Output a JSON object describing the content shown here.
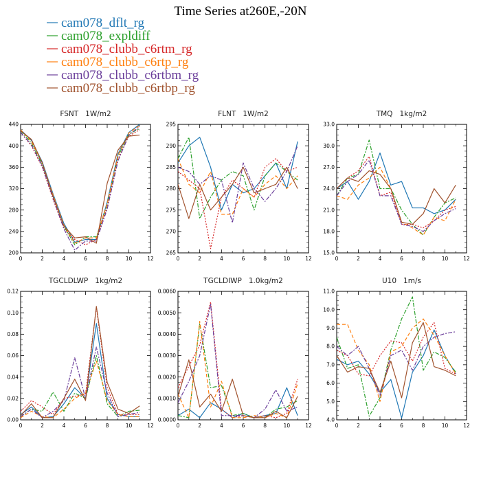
{
  "figure_title": "Time Series at260E,-20N",
  "legend": [
    {
      "name": "cam078_dflt_rg",
      "color": "#1f77b4"
    },
    {
      "name": "cam078_expldiff",
      "color": "#2ca02c"
    },
    {
      "name": "cam078_clubb_c6rtm_rg",
      "color": "#d62728"
    },
    {
      "name": "cam078_clubb_c6rtp_rg",
      "color": "#ff7f0e"
    },
    {
      "name": "cam078_clubb_c6rtbm_rg",
      "color": "#6a3d9a"
    },
    {
      "name": "cam078_clubb_c6rtbp_rg",
      "color": "#a0522d"
    }
  ],
  "chart_data": [
    {
      "type": "line",
      "title": "FSNT   1W/m2",
      "x": [
        0,
        1,
        2,
        3,
        4,
        5,
        6,
        7,
        8,
        9,
        10,
        11
      ],
      "xlim": [
        0,
        12
      ],
      "xticks": [
        0,
        2,
        4,
        6,
        8,
        10,
        12
      ],
      "xtick_labels": [
        "0",
        "2",
        "4",
        "6",
        "8",
        "10",
        "12"
      ],
      "ylim": [
        200,
        440
      ],
      "yticks": [
        200,
        240,
        280,
        320,
        360,
        400,
        440
      ],
      "ytick_labels": [
        "200",
        "240",
        "280",
        "320",
        "360",
        "400",
        "440"
      ],
      "series": [
        {
          "name": "cam078_dflt_rg",
          "values": [
            430,
            410,
            370,
            310,
            255,
            220,
            225,
            225,
            295,
            385,
            425,
            440
          ]
        },
        {
          "name": "cam078_expldiff",
          "values": [
            428,
            405,
            365,
            305,
            250,
            215,
            230,
            230,
            290,
            380,
            422,
            432
          ]
        },
        {
          "name": "cam078_clubb_c6rtm_rg",
          "values": [
            425,
            400,
            360,
            300,
            245,
            225,
            215,
            225,
            285,
            375,
            418,
            430
          ]
        },
        {
          "name": "cam078_clubb_c6rtp_rg",
          "values": [
            430,
            408,
            368,
            308,
            252,
            218,
            228,
            228,
            292,
            382,
            424,
            438
          ]
        },
        {
          "name": "cam078_clubb_c6rtbm_rg",
          "values": [
            425,
            402,
            362,
            302,
            245,
            205,
            222,
            222,
            282,
            372,
            420,
            436
          ]
        },
        {
          "name": "cam078_clubb_c6rtbp_rg",
          "values": [
            428,
            412,
            368,
            305,
            250,
            228,
            230,
            218,
            330,
            392,
            418,
            420
          ]
        }
      ]
    },
    {
      "type": "line",
      "title": "FLNT   1W/m2",
      "x": [
        0,
        1,
        2,
        3,
        4,
        5,
        6,
        7,
        8,
        9,
        10,
        11
      ],
      "xlim": [
        0,
        12
      ],
      "xticks": [
        0,
        2,
        4,
        6,
        8,
        10,
        12
      ],
      "xtick_labels": [
        "0",
        "2",
        "4",
        "6",
        "8",
        "10",
        "12"
      ],
      "ylim": [
        265,
        295
      ],
      "yticks": [
        265,
        270,
        275,
        280,
        285,
        290,
        295
      ],
      "ytick_labels": [
        "265",
        "270",
        "275",
        "280",
        "285",
        "290",
        "295"
      ],
      "series": [
        {
          "name": "cam078_dflt_rg",
          "values": [
            286,
            290,
            292,
            285,
            275,
            281,
            279,
            280,
            283,
            286,
            280,
            291
          ]
        },
        {
          "name": "cam078_expldiff",
          "values": [
            287,
            292,
            273,
            278,
            282,
            284,
            283,
            275,
            283,
            286,
            284,
            282
          ]
        },
        {
          "name": "cam078_clubb_c6rtm_rg",
          "values": [
            284,
            282,
            280,
            266,
            278,
            282,
            280,
            278,
            285,
            287,
            284,
            285
          ]
        },
        {
          "name": "cam078_clubb_c6rtp_rg",
          "values": [
            287,
            281,
            279,
            284,
            274,
            274,
            280,
            278,
            281,
            283,
            280,
            283
          ]
        },
        {
          "name": "cam078_clubb_c6rtbm_rg",
          "values": [
            285,
            284,
            281,
            283,
            282,
            272,
            286,
            280,
            277,
            280,
            284,
            290
          ]
        },
        {
          "name": "cam078_clubb_c6rtbp_rg",
          "values": [
            281,
            273,
            281,
            275,
            278,
            281,
            285,
            279,
            280,
            281,
            285,
            280
          ]
        }
      ]
    },
    {
      "type": "line",
      "title": "TMQ   1kg/m2",
      "x": [
        0,
        1,
        2,
        3,
        4,
        5,
        6,
        7,
        8,
        9,
        10,
        11
      ],
      "xlim": [
        0,
        12
      ],
      "xticks": [
        0,
        2,
        4,
        6,
        8,
        10,
        12
      ],
      "xtick_labels": [
        "0",
        "2",
        "4",
        "6",
        "8",
        "10",
        "12"
      ],
      "ylim": [
        15,
        33
      ],
      "yticks": [
        15,
        18,
        21,
        24,
        27,
        30,
        33
      ],
      "ytick_labels": [
        "15.0",
        "18.0",
        "21.0",
        "24.0",
        "27.0",
        "30.0",
        "33.0"
      ],
      "series": [
        {
          "name": "cam078_dflt_rg",
          "values": [
            24,
            25,
            22.5,
            25,
            29,
            24.5,
            25,
            21.3,
            21.3,
            20.5,
            21,
            22.5
          ]
        },
        {
          "name": "cam078_expldiff",
          "values": [
            23,
            25.5,
            26,
            30.8,
            24,
            24,
            21,
            19,
            17.5,
            20,
            22,
            22.7
          ]
        },
        {
          "name": "cam078_clubb_c6rtm_rg",
          "values": [
            24,
            25.5,
            26.5,
            28.5,
            23,
            23.5,
            19,
            19,
            18.5,
            19.5,
            21,
            21.5
          ]
        },
        {
          "name": "cam078_clubb_c6rtp_rg",
          "values": [
            23,
            22.5,
            24.5,
            25.5,
            27,
            24,
            19.3,
            18.5,
            17.5,
            20,
            19.5,
            22.5
          ]
        },
        {
          "name": "cam078_clubb_c6rtbm_rg",
          "values": [
            23,
            25,
            26,
            28,
            23,
            23,
            19,
            18.7,
            18,
            19.5,
            20.5,
            21.2
          ]
        },
        {
          "name": "cam078_clubb_c6rtbp_rg",
          "values": [
            24,
            25.5,
            25,
            26.5,
            26,
            24,
            19.3,
            19,
            20.5,
            24,
            22,
            24.5
          ]
        }
      ]
    },
    {
      "type": "line",
      "title": "TGCLDLWP   1kg/m2",
      "x": [
        0,
        1,
        2,
        3,
        4,
        5,
        6,
        7,
        8,
        9,
        10,
        11
      ],
      "xlim": [
        0,
        12
      ],
      "xticks": [
        0,
        2,
        4,
        6,
        8,
        10,
        12
      ],
      "xtick_labels": [
        "0",
        "2",
        "4",
        "6",
        "8",
        "10",
        "12"
      ],
      "ylim": [
        0,
        0.12
      ],
      "yticks": [
        0,
        0.02,
        0.04,
        0.06,
        0.08,
        0.1,
        0.12
      ],
      "ytick_labels": [
        "0.00",
        "0.02",
        "0.04",
        "0.06",
        "0.08",
        "0.10",
        "0.12"
      ],
      "series": [
        {
          "name": "cam078_dflt_rg",
          "values": [
            0.005,
            0.012,
            0.002,
            0.003,
            0.015,
            0.03,
            0.02,
            0.09,
            0.02,
            0.005,
            0.003,
            0.003
          ]
        },
        {
          "name": "cam078_expldiff",
          "values": [
            0.003,
            0.01,
            0.008,
            0.026,
            0.008,
            0.025,
            0.02,
            0.06,
            0.015,
            0.003,
            0.008,
            0.009
          ]
        },
        {
          "name": "cam078_clubb_c6rtm_rg",
          "values": [
            0.008,
            0.018,
            0.012,
            0.005,
            0.02,
            0.022,
            0.024,
            0.105,
            0.03,
            0.005,
            0.005,
            0.005
          ]
        },
        {
          "name": "cam078_clubb_c6rtp_rg",
          "values": [
            0.002,
            0.008,
            0.003,
            0.002,
            0.01,
            0.02,
            0.025,
            0.055,
            0.018,
            0.005,
            0.003,
            0.003
          ]
        },
        {
          "name": "cam078_clubb_c6rtbm_rg",
          "values": [
            0.003,
            0.01,
            0.002,
            0.008,
            0.018,
            0.058,
            0.02,
            0.068,
            0.025,
            0.003,
            0.005,
            0.007
          ]
        },
        {
          "name": "cam078_clubb_c6rtbp_rg",
          "values": [
            0.004,
            0.015,
            0.002,
            0.002,
            0.02,
            0.038,
            0.018,
            0.106,
            0.035,
            0.01,
            0.006,
            0.013
          ]
        }
      ]
    },
    {
      "type": "line",
      "title": "TGCLDIWP   1.0kg/m2",
      "x": [
        0,
        1,
        2,
        3,
        4,
        5,
        6,
        7,
        8,
        9,
        10,
        11
      ],
      "xlim": [
        0,
        12
      ],
      "xticks": [
        0,
        2,
        4,
        6,
        8,
        10,
        12
      ],
      "xtick_labels": [
        "0",
        "2",
        "4",
        "6",
        "8",
        "10",
        "12"
      ],
      "ylim": [
        0,
        0.006
      ],
      "yticks": [
        0,
        0.001,
        0.002,
        0.003,
        0.004,
        0.005,
        0.006
      ],
      "ytick_labels": [
        "0.0000",
        "0.0010",
        "0.0020",
        "0.0030",
        "0.0040",
        "0.0050",
        "0.0060"
      ],
      "series": [
        {
          "name": "cam078_dflt_rg",
          "values": [
            0.0002,
            0.0005,
            0.0001,
            0.0008,
            0.0005,
            0.0001,
            0.0003,
            0.0001,
            0.0002,
            0.0003,
            0.0015,
            0.0002
          ]
        },
        {
          "name": "cam078_expldiff",
          "values": [
            0.0002,
            0.0001,
            0.0045,
            0.0015,
            0.0016,
            0.0002,
            0.0003,
            0.0001,
            0.0001,
            0.0005,
            0.0006,
            0.0009
          ]
        },
        {
          "name": "cam078_clubb_c6rtm_rg",
          "values": [
            0.0015,
            0.0025,
            0.0035,
            0.0055,
            0.0005,
            0.0001,
            0.0002,
            0.0001,
            0.0002,
            0.0001,
            0.0003,
            0.0019
          ]
        },
        {
          "name": "cam078_clubb_c6rtp_rg",
          "values": [
            0.0012,
            0.0001,
            0.0046,
            0.0006,
            0.0018,
            0.0001,
            0.0001,
            0.0002,
            0.0001,
            0.0003,
            0.0001,
            0.0017
          ]
        },
        {
          "name": "cam078_clubb_c6rtbm_rg",
          "values": [
            0.0008,
            0.0018,
            0.003,
            0.0054,
            0.0002,
            0.0002,
            0.0002,
            0.0001,
            0.0005,
            0.0014,
            0.0004,
            0.0006
          ]
        },
        {
          "name": "cam078_clubb_c6rtbp_rg",
          "values": [
            0.0011,
            0.0028,
            0.0006,
            0.0012,
            0.0004,
            0.0019,
            0.0002,
            0.0001,
            0.0001,
            0.0004,
            0.0001,
            0.0011
          ]
        }
      ]
    },
    {
      "type": "line",
      "title": "U10   1m/s",
      "x": [
        0,
        1,
        2,
        3,
        4,
        5,
        6,
        7,
        8,
        9,
        10,
        11
      ],
      "xlim": [
        0,
        12
      ],
      "xticks": [
        0,
        2,
        4,
        6,
        8,
        10,
        12
      ],
      "xtick_labels": [
        "0",
        "2",
        "4",
        "6",
        "8",
        "10",
        "12"
      ],
      "ylim": [
        4,
        11
      ],
      "yticks": [
        4,
        5,
        6,
        7,
        8,
        9,
        10,
        11
      ],
      "ytick_labels": [
        "4.0",
        "5.0",
        "6.0",
        "7.0",
        "8.0",
        "9.0",
        "10.0",
        "11.0"
      ],
      "series": [
        {
          "name": "cam078_dflt_rg",
          "values": [
            7.3,
            7.0,
            7.2,
            6.5,
            5.5,
            6.2,
            4.1,
            6.6,
            7.5,
            8.9,
            7.5,
            6.5
          ]
        },
        {
          "name": "cam078_expldiff",
          "values": [
            8.5,
            6.8,
            7.0,
            4.2,
            5.2,
            7.8,
            9.5,
            10.7,
            6.7,
            7.7,
            7.4,
            6.6
          ]
        },
        {
          "name": "cam078_clubb_c6rtm_rg",
          "values": [
            7.8,
            7.5,
            6.5,
            6.4,
            7.5,
            8.3,
            8.2,
            7.2,
            8.5,
            9.3,
            6.8,
            6.5
          ]
        },
        {
          "name": "cam078_clubb_c6rtp_rg",
          "values": [
            9.2,
            9.2,
            7.8,
            7.0,
            5.0,
            7.7,
            8.0,
            9.0,
            9.5,
            8.6,
            7.5,
            6.5
          ]
        },
        {
          "name": "cam078_clubb_c6rtbm_rg",
          "values": [
            8.0,
            7.5,
            8.0,
            6.8,
            5.3,
            7.5,
            7.8,
            6.7,
            8.0,
            8.5,
            8.7,
            8.8
          ]
        },
        {
          "name": "cam078_clubb_c6rtbp_rg",
          "values": [
            7.5,
            6.6,
            6.9,
            6.8,
            5.5,
            7.2,
            5.2,
            8.2,
            9.3,
            6.9,
            6.7,
            6.4
          ]
        }
      ]
    }
  ]
}
